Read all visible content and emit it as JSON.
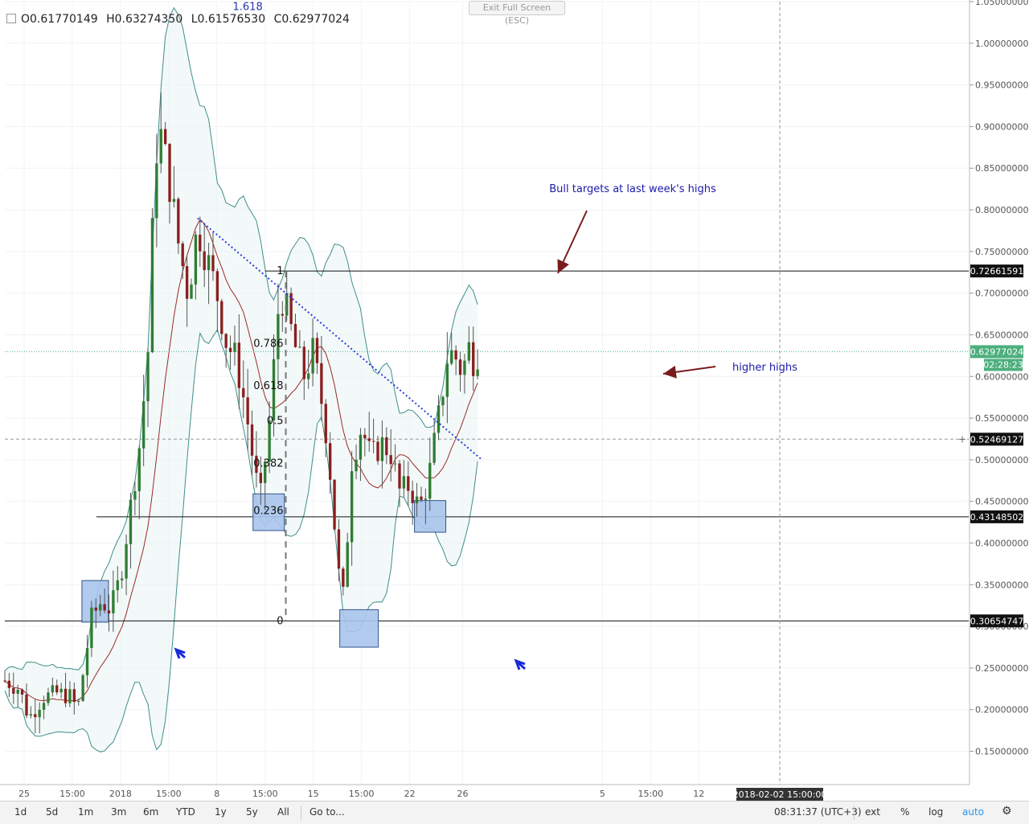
{
  "window": {
    "exit_button": "Exit Full Screen (ESC)"
  },
  "legend": {
    "open": "O0.61770149",
    "high": "H0.63274350",
    "low": "L0.61576530",
    "close": "C0.62977024"
  },
  "chart_data": {
    "type": "candlestick",
    "y_range": [
      0.11,
      1.05
    ],
    "y_ticks": [
      "1.05000000",
      "1.00000000",
      "0.95000000",
      "0.90000000",
      "0.85000000",
      "0.80000000",
      "0.75000000",
      "0.70000000",
      "0.65000000",
      "0.60000000",
      "0.55000000",
      "0.50000000",
      "0.45000000",
      "0.40000000",
      "0.35000000",
      "0.30000000",
      "0.25000000",
      "0.20000000",
      "0.15000000"
    ],
    "y_tick_values": [
      1.05,
      1.0,
      0.95,
      0.9,
      0.85,
      0.8,
      0.75,
      0.7,
      0.65,
      0.6,
      0.55,
      0.5,
      0.45,
      0.4,
      0.35,
      0.3,
      0.25,
      0.2,
      0.15
    ],
    "x_range": [
      0,
      200
    ],
    "x_ticks": [
      {
        "label": "25",
        "x": 4
      },
      {
        "label": "15:00",
        "x": 14
      },
      {
        "label": "2018",
        "x": 24
      },
      {
        "label": "15:00",
        "x": 34
      },
      {
        "label": "8",
        "x": 44
      },
      {
        "label": "15:00",
        "x": 54
      },
      {
        "label": "15",
        "x": 64
      },
      {
        "label": "15:00",
        "x": 74
      },
      {
        "label": "22",
        "x": 84
      },
      {
        "label": "26",
        "x": 95
      },
      {
        "label": "5",
        "x": 124
      },
      {
        "label": "15:00",
        "x": 134
      },
      {
        "label": "12",
        "x": 144
      }
    ],
    "candle_points": [
      [
        0,
        0.235
      ],
      [
        3,
        0.225
      ],
      [
        5,
        0.19
      ],
      [
        8,
        0.215
      ],
      [
        11,
        0.22
      ],
      [
        14,
        0.215
      ],
      [
        15,
        0.195
      ],
      [
        16,
        0.235
      ],
      [
        18,
        0.31
      ],
      [
        20,
        0.33
      ],
      [
        22,
        0.32
      ],
      [
        24,
        0.36
      ],
      [
        26,
        0.44
      ],
      [
        28,
        0.52
      ],
      [
        30,
        0.65
      ],
      [
        31,
        0.85
      ],
      [
        32,
        0.9
      ],
      [
        34,
        0.84
      ],
      [
        36,
        0.76
      ],
      [
        38,
        0.7
      ],
      [
        40,
        0.78
      ],
      [
        42,
        0.74
      ],
      [
        44,
        0.7
      ],
      [
        46,
        0.64
      ],
      [
        48,
        0.62
      ],
      [
        50,
        0.56
      ],
      [
        52,
        0.48
      ],
      [
        53,
        0.45
      ],
      [
        55,
        0.55
      ],
      [
        57,
        0.7
      ],
      [
        58,
        0.69
      ],
      [
        60,
        0.64
      ],
      [
        62,
        0.6
      ],
      [
        64,
        0.63
      ],
      [
        66,
        0.56
      ],
      [
        67,
        0.52
      ],
      [
        68,
        0.45
      ],
      [
        69,
        0.38
      ],
      [
        70,
        0.32
      ],
      [
        71,
        0.4
      ],
      [
        72,
        0.5
      ],
      [
        74,
        0.54
      ],
      [
        76,
        0.5
      ],
      [
        78,
        0.52
      ],
      [
        80,
        0.51
      ],
      [
        82,
        0.46
      ],
      [
        84,
        0.47
      ],
      [
        86,
        0.44
      ],
      [
        88,
        0.48
      ],
      [
        90,
        0.55
      ],
      [
        92,
        0.63
      ],
      [
        94,
        0.62
      ],
      [
        95,
        0.6
      ],
      [
        96,
        0.64
      ],
      [
        97,
        0.62
      ],
      [
        98,
        0.63
      ]
    ],
    "price_labels": [
      {
        "value": 0.72661591,
        "text": "0.72661591",
        "style": "dark"
      },
      {
        "value": 0.62977024,
        "text": "0.62977024",
        "style": "green"
      },
      {
        "value": 0.52469127,
        "text": "0.52469127",
        "style": "dark"
      },
      {
        "value": 0.43148502,
        "text": "0.43148502",
        "style": "dark"
      },
      {
        "value": 0.30654747,
        "text": "0.30654747",
        "style": "dark"
      }
    ],
    "countdown": "02:28:23",
    "crosshair_time": "2018-02-02 15:00:00",
    "fib_levels": [
      {
        "label": "1.618",
        "value": 1.04
      },
      {
        "label": "1",
        "value": 0.7266
      },
      {
        "label": "0.786",
        "value": 0.6395
      },
      {
        "label": "0.618",
        "value": 0.5886
      },
      {
        "label": "0.5",
        "value": 0.5466
      },
      {
        "label": "0.382",
        "value": 0.4956
      },
      {
        "label": "0.236",
        "value": 0.4385
      },
      {
        "label": "0",
        "value": 0.3065
      }
    ],
    "annotations": [
      {
        "text": "Bull targets at last week's highs"
      },
      {
        "text": "higher highs"
      }
    ]
  },
  "bottom_bar": {
    "timeframes": [
      "1d",
      "5d",
      "1m",
      "3m",
      "6m",
      "YTD",
      "1y",
      "5y",
      "All",
      "Go to..."
    ],
    "clock": "08:31:37 (UTC+3)",
    "right": [
      "ext",
      "%",
      "log",
      "auto"
    ],
    "settings_icon": "gear-icon"
  }
}
